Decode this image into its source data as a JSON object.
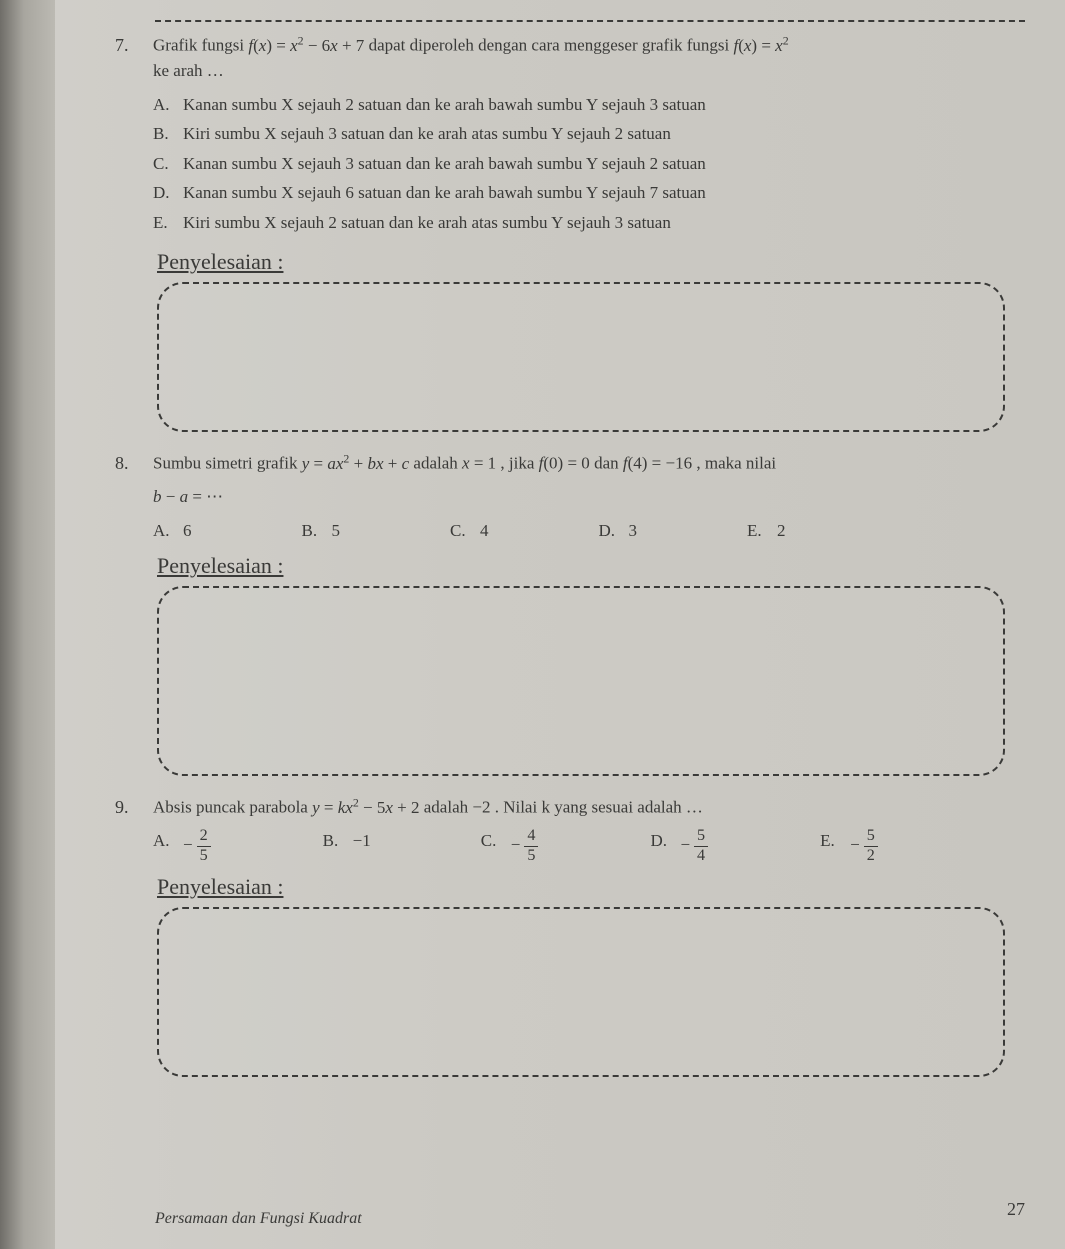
{
  "q7": {
    "number": "7.",
    "stem_pre": "Grafik fungsi ",
    "stem_f1": "f(x) = x² − 6x + 7",
    "stem_mid": " dapat diperoleh dengan cara menggeser grafik fungsi ",
    "stem_f2": "f(x) = x²",
    "stem_post": " ke arah …",
    "options": [
      {
        "letter": "A.",
        "text": "Kanan sumbu X sejauh 2 satuan dan ke arah bawah sumbu Y sejauh 3 satuan"
      },
      {
        "letter": "B.",
        "text": "Kiri sumbu X sejauh 3 satuan dan ke arah atas sumbu Y sejauh 2 satuan"
      },
      {
        "letter": "C.",
        "text": "Kanan sumbu X sejauh 3 satuan dan ke arah bawah sumbu Y sejauh 2 satuan"
      },
      {
        "letter": "D.",
        "text": "Kanan sumbu X sejauh 6 satuan dan ke arah bawah sumbu Y sejauh 7 satuan"
      },
      {
        "letter": "E.",
        "text": "Kiri sumbu X sejauh 2 satuan dan ke arah atas sumbu Y sejauh 3 satuan"
      }
    ]
  },
  "q8": {
    "number": "8.",
    "stem_pre": "Sumbu simetri grafik ",
    "stem_eq": "y = ax² + bx + c",
    "stem_mid1": " adalah ",
    "stem_x": "x = 1",
    "stem_mid2": ", jika ",
    "stem_f0": "f(0) = 0",
    "stem_mid3": " dan ",
    "stem_f4": "f(4) = −16",
    "stem_post": ", maka nilai",
    "line2": "b − a = ⋯",
    "options": [
      {
        "letter": "A.",
        "text": "6"
      },
      {
        "letter": "B.",
        "text": "5"
      },
      {
        "letter": "C.",
        "text": "4"
      },
      {
        "letter": "D.",
        "text": "3"
      },
      {
        "letter": "E.",
        "text": "2"
      }
    ]
  },
  "q9": {
    "number": "9.",
    "stem_pre": "Absis puncak parabola ",
    "stem_eq": "y = kx² − 5x + 2",
    "stem_mid": " adalah −2 . Nilai k yang sesuai adalah …",
    "options": [
      {
        "letter": "A.",
        "neg": "−",
        "num": "2",
        "den": "5"
      },
      {
        "letter": "B.",
        "plain": "−1"
      },
      {
        "letter": "C.",
        "neg": "−",
        "num": "4",
        "den": "5"
      },
      {
        "letter": "D.",
        "neg": "−",
        "num": "5",
        "den": "4"
      },
      {
        "letter": "E.",
        "neg": "−",
        "num": "5",
        "den": "2"
      }
    ]
  },
  "labels": {
    "penyelesaian": "Penyelesaian :"
  },
  "footer": "Persamaan dan Fungsi Kuadrat",
  "page_number": "27"
}
